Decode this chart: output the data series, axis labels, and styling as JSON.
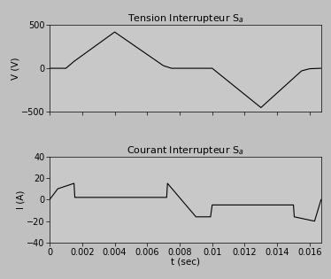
{
  "title1": "Tension Interrupteur S$_a$",
  "title2": "Courant Interrupteur S$_a$",
  "xlabel": "t (sec)",
  "ylabel1": "V (V)",
  "ylabel2": "I (A)",
  "ylim1": [
    -500,
    500
  ],
  "ylim2": [
    -40,
    40
  ],
  "xlim": [
    0,
    0.0167
  ],
  "xticks": [
    0,
    0.002,
    0.004,
    0.006,
    0.008,
    0.01,
    0.012,
    0.014,
    0.016
  ],
  "yticks1": [
    -500,
    0,
    500
  ],
  "yticks2": [
    -40,
    -20,
    0,
    20,
    40
  ],
  "voltage_x": [
    0,
    0.001,
    0.0015,
    0.004,
    0.007,
    0.0075,
    0.01,
    0.0101,
    0.013,
    0.0155,
    0.016,
    0.0167
  ],
  "voltage_y": [
    0,
    0,
    80,
    420,
    30,
    0,
    0,
    -15,
    -455,
    -30,
    -5,
    0
  ],
  "current_x": [
    0,
    0.0005,
    0.0015,
    0.00155,
    0.00156,
    0.007,
    0.0072,
    0.00725,
    0.009,
    0.0098,
    0.0099,
    0.01,
    0.015,
    0.01505,
    0.0163,
    0.0167
  ],
  "current_y": [
    0,
    10,
    15,
    2,
    2,
    2,
    2,
    15,
    -16,
    -16,
    -16,
    -5,
    -5,
    -16,
    -20,
    0
  ],
  "line_color": "#000000",
  "bg_color": "#c0c0c0",
  "plot_bg": "#c8c8c8",
  "title_fontsize": 8,
  "label_fontsize": 7.5,
  "tick_fontsize": 7
}
